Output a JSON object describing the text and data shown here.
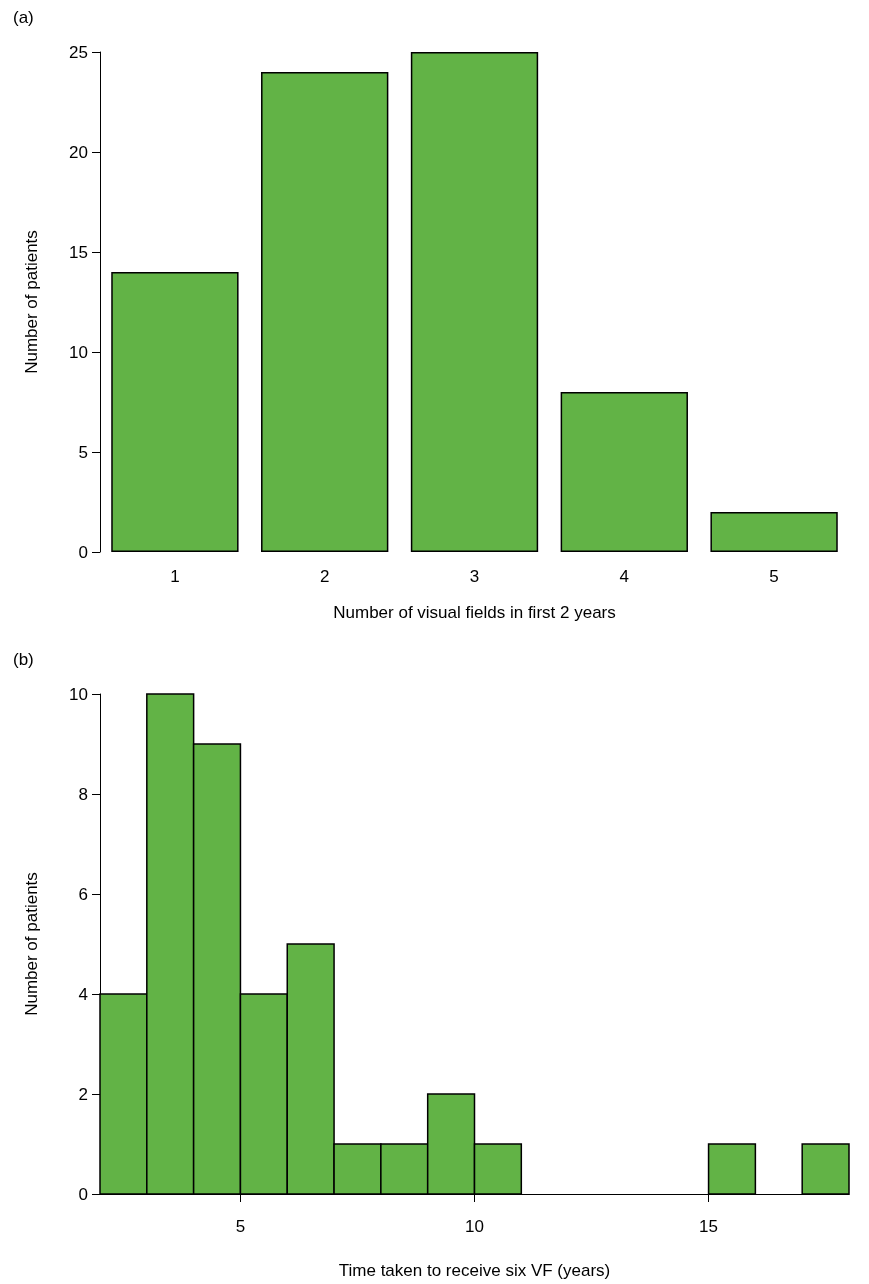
{
  "chart_data": [
    {
      "type": "bar",
      "title": "(a)",
      "xlabel": "Number of visual fields in first 2 years",
      "ylabel": "Number of patients",
      "categories": [
        "1",
        "2",
        "3",
        "4",
        "5"
      ],
      "values": [
        14,
        24,
        25,
        8,
        2
      ],
      "color": "#62b346",
      "ylim": [
        0,
        25
      ],
      "yticks": [
        0,
        5,
        10,
        15,
        20,
        25
      ],
      "grid": false
    },
    {
      "type": "histogram",
      "title": "(b)",
      "xlabel": "Time taken to receive six VF (years)",
      "ylabel": "Number of patients",
      "bins": [
        2,
        3,
        4,
        5,
        6,
        7,
        8,
        9,
        10,
        11,
        12,
        13,
        14,
        15,
        16,
        17,
        18
      ],
      "values": [
        4,
        10,
        9,
        4,
        5,
        1,
        1,
        2,
        1,
        0,
        0,
        0,
        0,
        1,
        0,
        1
      ],
      "color": "#62b346",
      "xlim": [
        2,
        18
      ],
      "xticks": [
        5,
        10,
        15
      ],
      "ylim": [
        0,
        10
      ],
      "yticks": [
        0,
        2,
        4,
        6,
        8,
        10
      ],
      "grid": false
    }
  ]
}
